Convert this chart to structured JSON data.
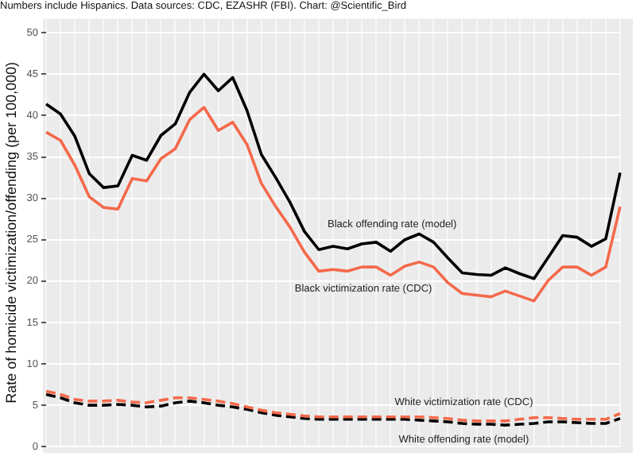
{
  "chart_data": {
    "type": "line",
    "subtitle": "Numbers include Hispanics. Data sources: CDC, EZASHR (FBI). Chart: @Scientific_Bird",
    "ylabel": "Rate of homicide victimization/offending (per 100,000)",
    "categories": [
      null,
      null,
      null,
      null,
      null,
      null,
      null,
      null,
      null,
      null,
      null,
      null,
      null,
      null,
      null,
      null,
      null,
      null,
      null,
      null,
      null,
      null,
      null,
      null,
      null,
      null,
      null,
      null,
      null,
      null,
      null,
      null,
      null,
      null,
      null,
      null,
      null,
      null,
      null,
      null,
      null
    ],
    "series": [
      {
        "name": "Black offending rate (model)",
        "color": "#000000",
        "line_style": "solid",
        "values": [
          41.4,
          40.2,
          37.5,
          33,
          31.3,
          31.5,
          35.2,
          34.6,
          37.6,
          39,
          42.8,
          45,
          43,
          44.6,
          40.6,
          35.3,
          32.5,
          29.5,
          26,
          23.8,
          24.2,
          23.9,
          24.5,
          24.7,
          23.6,
          25,
          25.7,
          24.7,
          22.8,
          21,
          20.8,
          20.7,
          21.6,
          20.9,
          20.3,
          22.9,
          25.5,
          25.3,
          24.2,
          25.1,
          33.1
        ]
      },
      {
        "name": "Black victimization rate (CDC)",
        "color": "#f4694b",
        "line_style": "solid",
        "values": [
          38,
          37,
          34,
          30.2,
          28.9,
          28.7,
          32.4,
          32.1,
          34.8,
          36,
          39.5,
          41,
          38.2,
          39.2,
          36.5,
          31.8,
          29,
          26.5,
          23.5,
          21.2,
          21.4,
          21.2,
          21.7,
          21.7,
          20.7,
          21.8,
          22.3,
          21.7,
          19.8,
          18.5,
          18.3,
          18.1,
          18.8,
          18.2,
          17.6,
          20.1,
          21.7,
          21.7,
          20.7,
          21.7,
          29
        ]
      },
      {
        "name": "White victimization rate (CDC)",
        "color": "#f4694b",
        "line_style": "dashed",
        "values": [
          6.7,
          6.3,
          5.7,
          5.5,
          5.5,
          5.6,
          5.4,
          5.3,
          5.6,
          5.9,
          5.9,
          5.7,
          5.5,
          5.2,
          4.8,
          4.4,
          4.1,
          3.9,
          3.7,
          3.6,
          3.6,
          3.6,
          3.6,
          3.6,
          3.6,
          3.6,
          3.6,
          3.5,
          3.4,
          3.2,
          3.1,
          3.1,
          3.1,
          3.3,
          3.5,
          3.5,
          3.4,
          3.3,
          3.3,
          3.3,
          4
        ]
      },
      {
        "name": "White offending rate (model)",
        "color": "#000000",
        "line_style": "dashed",
        "values": [
          6.3,
          5.9,
          5.3,
          5,
          5,
          5.1,
          5,
          4.8,
          4.9,
          5.3,
          5.5,
          5.3,
          5,
          4.8,
          4.5,
          4.1,
          3.8,
          3.6,
          3.4,
          3.3,
          3.3,
          3.3,
          3.3,
          3.3,
          3.3,
          3.3,
          3.2,
          3.1,
          3,
          2.8,
          2.7,
          2.7,
          2.6,
          2.7,
          2.8,
          3,
          3,
          2.9,
          2.8,
          2.8,
          3.4
        ]
      }
    ],
    "ylim": [
      0,
      51.7
    ],
    "yticks": [
      0,
      5,
      10,
      15,
      20,
      25,
      30,
      35,
      40,
      45,
      50
    ],
    "grid": true,
    "legend": false,
    "tick_labels": "y",
    "marker": "none"
  }
}
